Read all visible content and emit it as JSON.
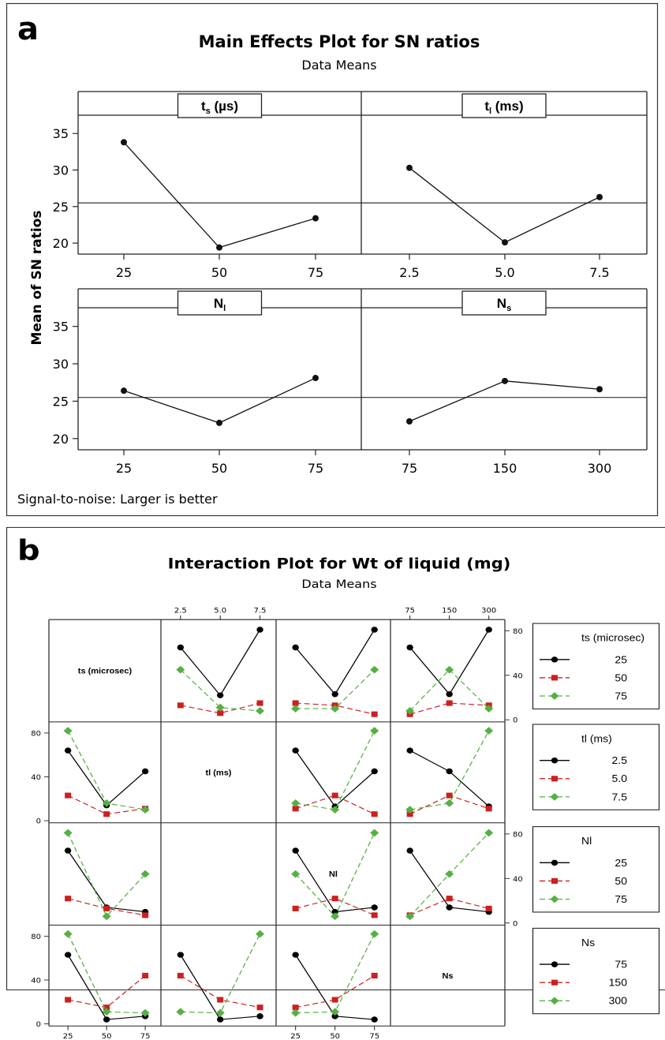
{
  "panel_a": {
    "letter": "a",
    "title": "Main Effects Plot for SN ratios",
    "subtitle": "Data Means",
    "ylabel": "Mean of SN ratios",
    "footnote": "Signal-to-noise: Larger is better"
  },
  "panel_b": {
    "letter": "b",
    "title": "Interaction Plot for Wt of liquid (mg)",
    "subtitle": "Data Means"
  },
  "chart_data": [
    {
      "type": "line",
      "title": "Main Effects Plot for SN ratios",
      "subtitle": "Data Means",
      "ylabel": "Mean of SN ratios",
      "ylim": [
        18.5,
        37.5
      ],
      "yticks": [
        "20",
        "25",
        "30",
        "35"
      ],
      "ytick_values": [
        20,
        25,
        30,
        35
      ],
      "reference_line": 25.5,
      "panels": [
        {
          "factor": "t",
          "sub": "s",
          "unit": " (µs)",
          "x": [
            "25",
            "50",
            "75"
          ],
          "values": [
            33.8,
            19.4,
            23.4
          ]
        },
        {
          "factor": "t",
          "sub": "l",
          "unit": " (ms)",
          "x": [
            "2.5",
            "5.0",
            "7.5"
          ],
          "values": [
            30.3,
            20.1,
            26.3
          ]
        },
        {
          "factor": "N",
          "sub": "l",
          "unit": "",
          "x": [
            "25",
            "50",
            "75"
          ],
          "values": [
            26.4,
            22.1,
            28.1
          ]
        },
        {
          "factor": "N",
          "sub": "s",
          "unit": "",
          "x": [
            "75",
            "150",
            "300"
          ],
          "values": [
            22.3,
            27.7,
            26.6
          ]
        }
      ],
      "footnote": "Signal-to-noise: Larger is better"
    },
    {
      "type": "line",
      "title": "Interaction Plot for Wt of liquid (mg)",
      "subtitle": "Data Means",
      "ylim": [
        0,
        85
      ],
      "yticks": [
        "0",
        "40",
        "80"
      ],
      "ytick_values": [
        0,
        40,
        80
      ],
      "factors": [
        {
          "name": "ts (microsec)",
          "levels": [
            "25",
            "50",
            "75"
          ]
        },
        {
          "name": "tl (ms)",
          "levels": [
            "2.5",
            "5.0",
            "7.5"
          ]
        },
        {
          "name": "Nl",
          "levels": [
            "25",
            "50",
            "75"
          ]
        },
        {
          "name": "Ns",
          "levels": [
            "75",
            "150",
            "300"
          ]
        }
      ],
      "series_colors": [
        "#000000",
        "#cc1f1f",
        "#55b043"
      ],
      "markers": [
        "circle",
        "square",
        "diamond"
      ],
      "cells": {
        "0-1": [
          [
            65,
            22,
            81
          ],
          [
            13,
            6,
            15
          ],
          [
            45,
            11,
            8
          ]
        ],
        "0-2": [
          [
            65,
            23,
            81
          ],
          [
            15,
            13,
            5
          ],
          [
            10,
            10,
            45
          ]
        ],
        "0-3": [
          [
            65,
            23,
            81
          ],
          [
            5,
            15,
            13
          ],
          [
            8,
            45,
            10
          ]
        ],
        "1-0": [
          [
            64,
            14,
            45
          ],
          [
            23,
            6,
            11
          ],
          [
            82,
            16,
            10
          ]
        ],
        "1-2": [
          [
            64,
            13,
            45
          ],
          [
            11,
            23,
            6
          ],
          [
            16,
            10,
            82
          ]
        ],
        "1-3": [
          [
            64,
            45,
            13
          ],
          [
            6,
            23,
            11
          ],
          [
            10,
            16,
            82
          ]
        ],
        "2-0": [
          [
            65,
            14,
            10
          ],
          [
            22,
            13,
            7
          ],
          [
            81,
            6,
            44
          ]
        ],
        "2-2": [
          [
            65,
            10,
            14
          ],
          [
            13,
            22,
            7
          ],
          [
            44,
            6,
            81
          ]
        ],
        "2-3": [
          [
            65,
            14,
            10
          ],
          [
            7,
            22,
            13
          ],
          [
            6,
            44,
            81
          ]
        ],
        "3-0": [
          [
            63,
            4,
            7
          ],
          [
            22,
            15,
            44
          ],
          [
            82,
            11,
            10
          ]
        ],
        "3-1": [
          [
            63,
            4,
            7
          ],
          [
            44,
            22,
            15
          ],
          [
            11,
            10,
            82
          ]
        ],
        "3-2": [
          [
            63,
            7,
            4
          ],
          [
            15,
            22,
            44
          ],
          [
            10,
            11,
            82
          ]
        ]
      }
    }
  ]
}
